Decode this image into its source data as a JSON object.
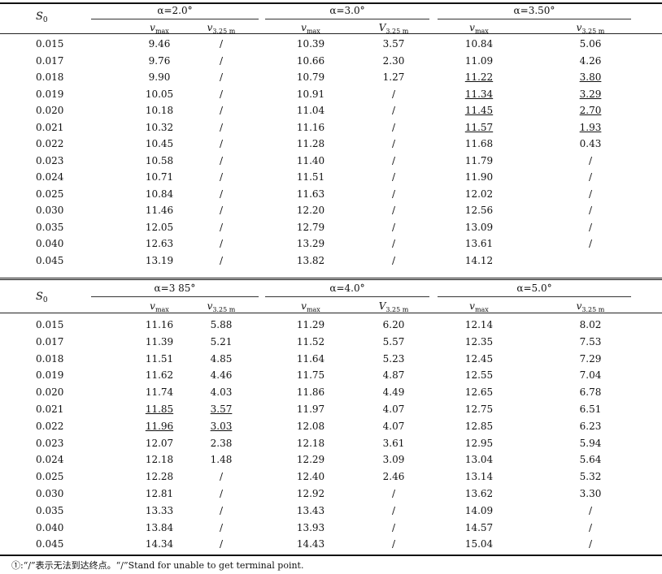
{
  "s0_label": "S",
  "s0_sub": "0",
  "var_v": "v",
  "var_V": "V",
  "sub_max": "max",
  "sub_325": "3.25 m",
  "top_headers": [
    "α=2.0°",
    "α=3.0°",
    "α=3.50°"
  ],
  "bottom_headers": [
    "α=3 85°",
    "α=4.0°",
    "α=5.0°"
  ],
  "top_rows": [
    {
      "s0": "0.015",
      "c": [
        "9.46",
        "/",
        "10.39",
        "3.57",
        "10.84",
        "5.06"
      ]
    },
    {
      "s0": "0.017",
      "c": [
        "9.76",
        "/",
        "10.66",
        "2.30",
        "11.09",
        "4.26"
      ]
    },
    {
      "s0": "0.018",
      "c": [
        "9.90",
        "/",
        "10.79",
        "1.27",
        "11.22",
        "3.80"
      ]
    },
    {
      "s0": "0.019",
      "c": [
        "10.05",
        "/",
        "10.91",
        "/",
        "11.34",
        "3.29"
      ]
    },
    {
      "s0": "0.020",
      "c": [
        "10.18",
        "/",
        "11.04",
        "/",
        "11.45",
        "2.70"
      ]
    },
    {
      "s0": "0.021",
      "c": [
        "10.32",
        "/",
        "11.16",
        "/",
        "11.57",
        "1.93"
      ]
    },
    {
      "s0": "0.022",
      "c": [
        "10.45",
        "/",
        "11.28",
        "/",
        "11.68",
        "0.43"
      ]
    },
    {
      "s0": "0.023",
      "c": [
        "10.58",
        "/",
        "11.40",
        "/",
        "11.79",
        "/"
      ]
    },
    {
      "s0": "0.024",
      "c": [
        "10.71",
        "/",
        "11.51",
        "/",
        "11.90",
        "/"
      ]
    },
    {
      "s0": "0.025",
      "c": [
        "10.84",
        "/",
        "11.63",
        "/",
        "12.02",
        "/"
      ]
    },
    {
      "s0": "0.030",
      "c": [
        "11.46",
        "/",
        "12.20",
        "/",
        "12.56",
        "/"
      ]
    },
    {
      "s0": "0.035",
      "c": [
        "12.05",
        "/",
        "12.79",
        "/",
        "13.09",
        "/"
      ]
    },
    {
      "s0": "0.040",
      "c": [
        "12.63",
        "/",
        "13.29",
        "/",
        "13.61",
        "/"
      ]
    },
    {
      "s0": "0.045",
      "c": [
        "13.19",
        "/",
        "13.82",
        "/",
        "14.12",
        ""
      ]
    }
  ],
  "bottom_rows": [
    {
      "s0": "0.015",
      "c": [
        "11.16",
        "5.88",
        "11.29",
        "6.20",
        "12.14",
        "8.02"
      ]
    },
    {
      "s0": "0.017",
      "c": [
        "11.39",
        "5.21",
        "11.52",
        "5.57",
        "12.35",
        "7.53"
      ]
    },
    {
      "s0": "0.018",
      "c": [
        "11.51",
        "4.85",
        "11.64",
        "5.23",
        "12.45",
        "7.29"
      ]
    },
    {
      "s0": "0.019",
      "c": [
        "11.62",
        "4.46",
        "11.75",
        "4.87",
        "12.55",
        "7.04"
      ]
    },
    {
      "s0": "0.020",
      "c": [
        "11.74",
        "4.03",
        "11.86",
        "4.49",
        "12.65",
        "6.78"
      ]
    },
    {
      "s0": "0.021",
      "c": [
        "11.85",
        "3.57",
        "11.97",
        "4.07",
        "12.75",
        "6.51"
      ]
    },
    {
      "s0": "0.022",
      "c": [
        "11.96",
        "3.03",
        "12.08",
        "4.07",
        "12.85",
        "6.23"
      ]
    },
    {
      "s0": "0.023",
      "c": [
        "12.07",
        "2.38",
        "12.18",
        "3.61",
        "12.95",
        "5.94"
      ]
    },
    {
      "s0": "0.024",
      "c": [
        "12.18",
        "1.48",
        "12.29",
        "3.09",
        "13.04",
        "5.64"
      ]
    },
    {
      "s0": "0.025",
      "c": [
        "12.28",
        "/",
        "12.40",
        "2.46",
        "13.14",
        "5.32"
      ]
    },
    {
      "s0": "0.030",
      "c": [
        "12.81",
        "/",
        "12.92",
        "/",
        "13.62",
        "3.30"
      ]
    },
    {
      "s0": "0.035",
      "c": [
        "13.33",
        "/",
        "13.43",
        "/",
        "14.09",
        "/"
      ]
    },
    {
      "s0": "0.040",
      "c": [
        "13.84",
        "/",
        "13.93",
        "/",
        "14.57",
        "/"
      ]
    },
    {
      "s0": "0.045",
      "c": [
        "14.34",
        "/",
        "14.43",
        "/",
        "15.04",
        "/"
      ]
    }
  ],
  "footnote": "①:“/”表示无法到达终点。“/”Stand for unable to get terminal point."
}
